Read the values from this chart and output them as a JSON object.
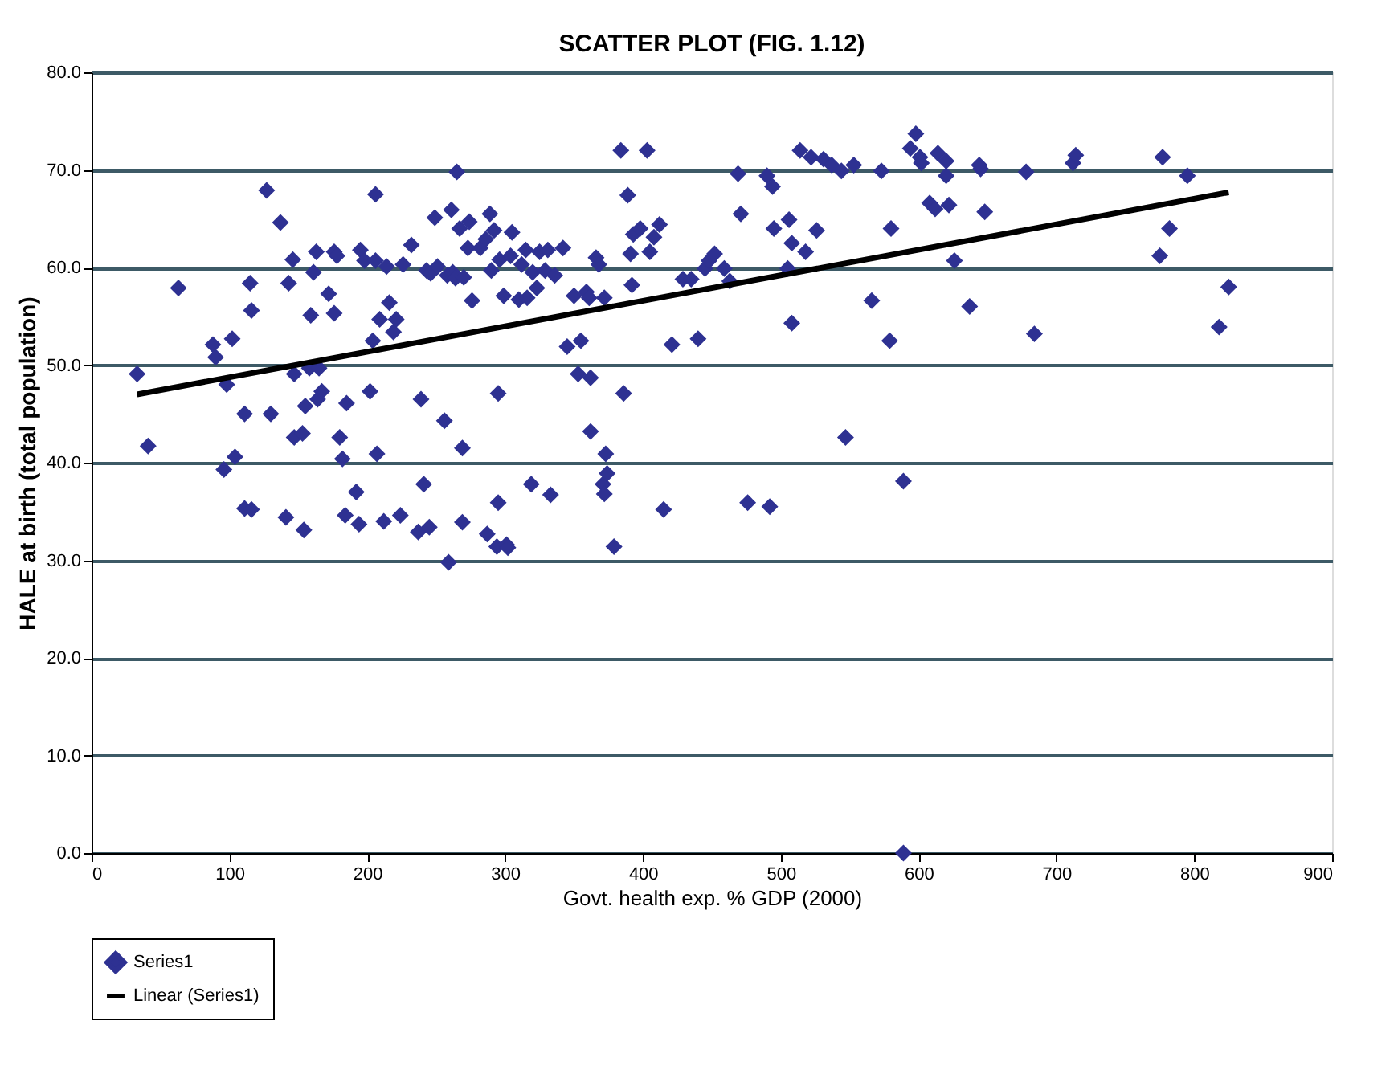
{
  "chart_data": {
    "type": "scatter",
    "title": "SCATTER PLOT (FIG. 1.12)",
    "xlabel": "Govt. health exp. % GDP (2000)",
    "ylabel": "HALE at birth (total population)",
    "xlim": [
      0,
      900
    ],
    "xticks": [
      0,
      100,
      200,
      300,
      400,
      500,
      600,
      700,
      800,
      900
    ],
    "ylim": [
      0,
      80
    ],
    "yticks": [
      {
        "value": 0,
        "label": "0.0"
      },
      {
        "value": 10,
        "label": "10.0"
      },
      {
        "value": 20,
        "label": "20.0"
      },
      {
        "value": 30,
        "label": "30.0"
      },
      {
        "value": 40,
        "label": "40.0"
      },
      {
        "value": 50,
        "label": "50.0"
      },
      {
        "value": 60,
        "label": "60.0"
      },
      {
        "value": 70,
        "label": "70.0"
      },
      {
        "value": 80,
        "label": "80.0"
      }
    ],
    "grid": "y",
    "legend": "bottom",
    "series": [
      {
        "name": "Series1",
        "color": "#2e3192",
        "marker": "diamond",
        "x": [
          33,
          41,
          63,
          88,
          90,
          96,
          98,
          102,
          104,
          111,
          111,
          115,
          116,
          116,
          127,
          130,
          137,
          141,
          143,
          146,
          147,
          147,
          153,
          154,
          155,
          158,
          159,
          161,
          163,
          164,
          165,
          167,
          172,
          176,
          176,
          178,
          180,
          182,
          184,
          185,
          192,
          194,
          195,
          198,
          202,
          204,
          206,
          206,
          207,
          209,
          212,
          214,
          216,
          219,
          221,
          224,
          226,
          232,
          237,
          239,
          241,
          243,
          245,
          246,
          249,
          251,
          256,
          258,
          259,
          261,
          262,
          264,
          265,
          267,
          269,
          269,
          270,
          273,
          274,
          276,
          282,
          286,
          287,
          289,
          290,
          292,
          294,
          295,
          295,
          296,
          299,
          301,
          302,
          304,
          305,
          310,
          312,
          315,
          316,
          319,
          320,
          323,
          325,
          329,
          331,
          333,
          336,
          342,
          345,
          350,
          353,
          355,
          359,
          361,
          362,
          362,
          366,
          368,
          371,
          372,
          373,
          374,
          372,
          379,
          384,
          389,
          386,
          391,
          392,
          393,
          398,
          403,
          405,
          408,
          412,
          415,
          421,
          429,
          435,
          440,
          445,
          448,
          452,
          459,
          463,
          469,
          471,
          476,
          490,
          494,
          492,
          495,
          505,
          506,
          508,
          508,
          514,
          518,
          522,
          526,
          531,
          537,
          544,
          547,
          553,
          566,
          573,
          579,
          580,
          589,
          589,
          594,
          598,
          601,
          602,
          614,
          608,
          612,
          620,
          620,
          622,
          626,
          645,
          644,
          637,
          648,
          678,
          684,
          712,
          714,
          777,
          775,
          782,
          795,
          818,
          825
        ],
        "values": [
          49.1,
          41.7,
          57.9,
          52.1,
          50.8,
          39.3,
          48.0,
          52.7,
          40.6,
          35.3,
          45.0,
          58.4,
          55.6,
          35.2,
          67.9,
          45.0,
          64.6,
          34.4,
          58.4,
          60.8,
          49.1,
          42.6,
          43.0,
          33.1,
          45.8,
          49.7,
          55.1,
          59.5,
          61.6,
          46.5,
          49.7,
          47.3,
          57.3,
          55.3,
          61.6,
          61.2,
          42.6,
          40.4,
          34.6,
          46.1,
          37.0,
          33.7,
          61.8,
          60.7,
          47.3,
          52.5,
          67.5,
          60.7,
          40.9,
          54.7,
          34.0,
          60.1,
          56.4,
          53.4,
          54.7,
          34.6,
          60.3,
          62.3,
          32.9,
          46.5,
          37.8,
          59.7,
          33.4,
          59.4,
          65.1,
          60.1,
          44.3,
          59.2,
          29.8,
          65.9,
          59.5,
          58.9,
          69.8,
          64.0,
          41.5,
          33.9,
          59.0,
          62.0,
          64.7,
          56.6,
          62.0,
          62.9,
          32.7,
          65.5,
          59.7,
          63.8,
          31.4,
          35.9,
          47.1,
          60.8,
          57.1,
          31.6,
          31.3,
          61.2,
          63.6,
          56.7,
          60.3,
          61.8,
          56.9,
          37.8,
          59.5,
          57.9,
          61.6,
          59.7,
          61.8,
          36.7,
          59.2,
          62.0,
          51.9,
          57.1,
          49.1,
          52.5,
          57.5,
          56.9,
          48.7,
          43.2,
          61.0,
          60.3,
          37.8,
          56.9,
          40.9,
          38.9,
          36.8,
          31.4,
          72.0,
          67.4,
          47.1,
          61.4,
          58.2,
          63.4,
          64.0,
          72.0,
          61.6,
          63.1,
          64.4,
          35.2,
          52.1,
          58.8,
          58.8,
          52.7,
          59.9,
          60.7,
          61.4,
          59.9,
          58.6,
          69.6,
          65.5,
          35.9,
          69.4,
          68.3,
          35.5,
          64.0,
          59.9,
          64.9,
          62.5,
          54.3,
          72.0,
          61.6,
          71.3,
          63.8,
          71.1,
          70.5,
          69.9,
          42.6,
          70.5,
          56.6,
          69.9,
          52.5,
          64.0,
          38.1,
          0.0,
          72.2,
          73.7,
          71.3,
          70.7,
          71.7,
          66.6,
          66.0,
          70.9,
          69.4,
          66.4,
          60.7,
          70.1,
          70.5,
          56.0,
          65.7,
          69.8,
          53.2,
          70.7,
          71.5,
          71.3,
          61.2,
          64.0,
          69.4,
          53.9,
          58.0
        ]
      },
      {
        "name": "Linear (Series1)",
        "color": "#000000",
        "type": "line",
        "x": [
          33,
          825
        ],
        "values": [
          47.0,
          67.7
        ]
      }
    ]
  }
}
